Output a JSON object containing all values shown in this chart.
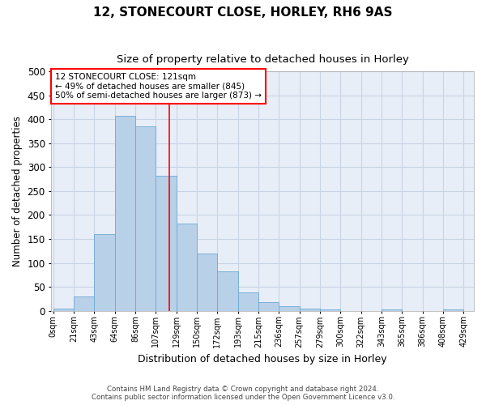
{
  "title": "12, STONECOURT CLOSE, HORLEY, RH6 9AS",
  "subtitle": "Size of property relative to detached houses in Horley",
  "xlabel": "Distribution of detached houses by size in Horley",
  "ylabel": "Number of detached properties",
  "footer_line1": "Contains HM Land Registry data © Crown copyright and database right 2024.",
  "footer_line2": "Contains public sector information licensed under the Open Government Licence v3.0.",
  "bin_labels": [
    "0sqm",
    "21sqm",
    "43sqm",
    "64sqm",
    "86sqm",
    "107sqm",
    "129sqm",
    "150sqm",
    "172sqm",
    "193sqm",
    "215sqm",
    "236sqm",
    "257sqm",
    "279sqm",
    "300sqm",
    "322sqm",
    "343sqm",
    "365sqm",
    "386sqm",
    "408sqm",
    "429sqm"
  ],
  "bar_values": [
    5,
    30,
    160,
    407,
    385,
    282,
    183,
    120,
    83,
    38,
    18,
    10,
    5,
    2,
    0,
    0,
    2,
    0,
    0,
    2
  ],
  "bar_color": "#b8d0e8",
  "bar_edge_color": "#6aaad4",
  "grid_color": "#c8d4e4",
  "background_color": "#e8eef8",
  "annotation_line1": "12 STONECOURT CLOSE: 121sqm",
  "annotation_line2": "← 49% of detached houses are smaller (845)",
  "annotation_line3": "50% of semi-detached houses are larger (873) →",
  "property_line_x": 121,
  "bin_width": 21.43,
  "ylim_max": 500,
  "yticks": [
    0,
    50,
    100,
    150,
    200,
    250,
    300,
    350,
    400,
    450,
    500
  ]
}
